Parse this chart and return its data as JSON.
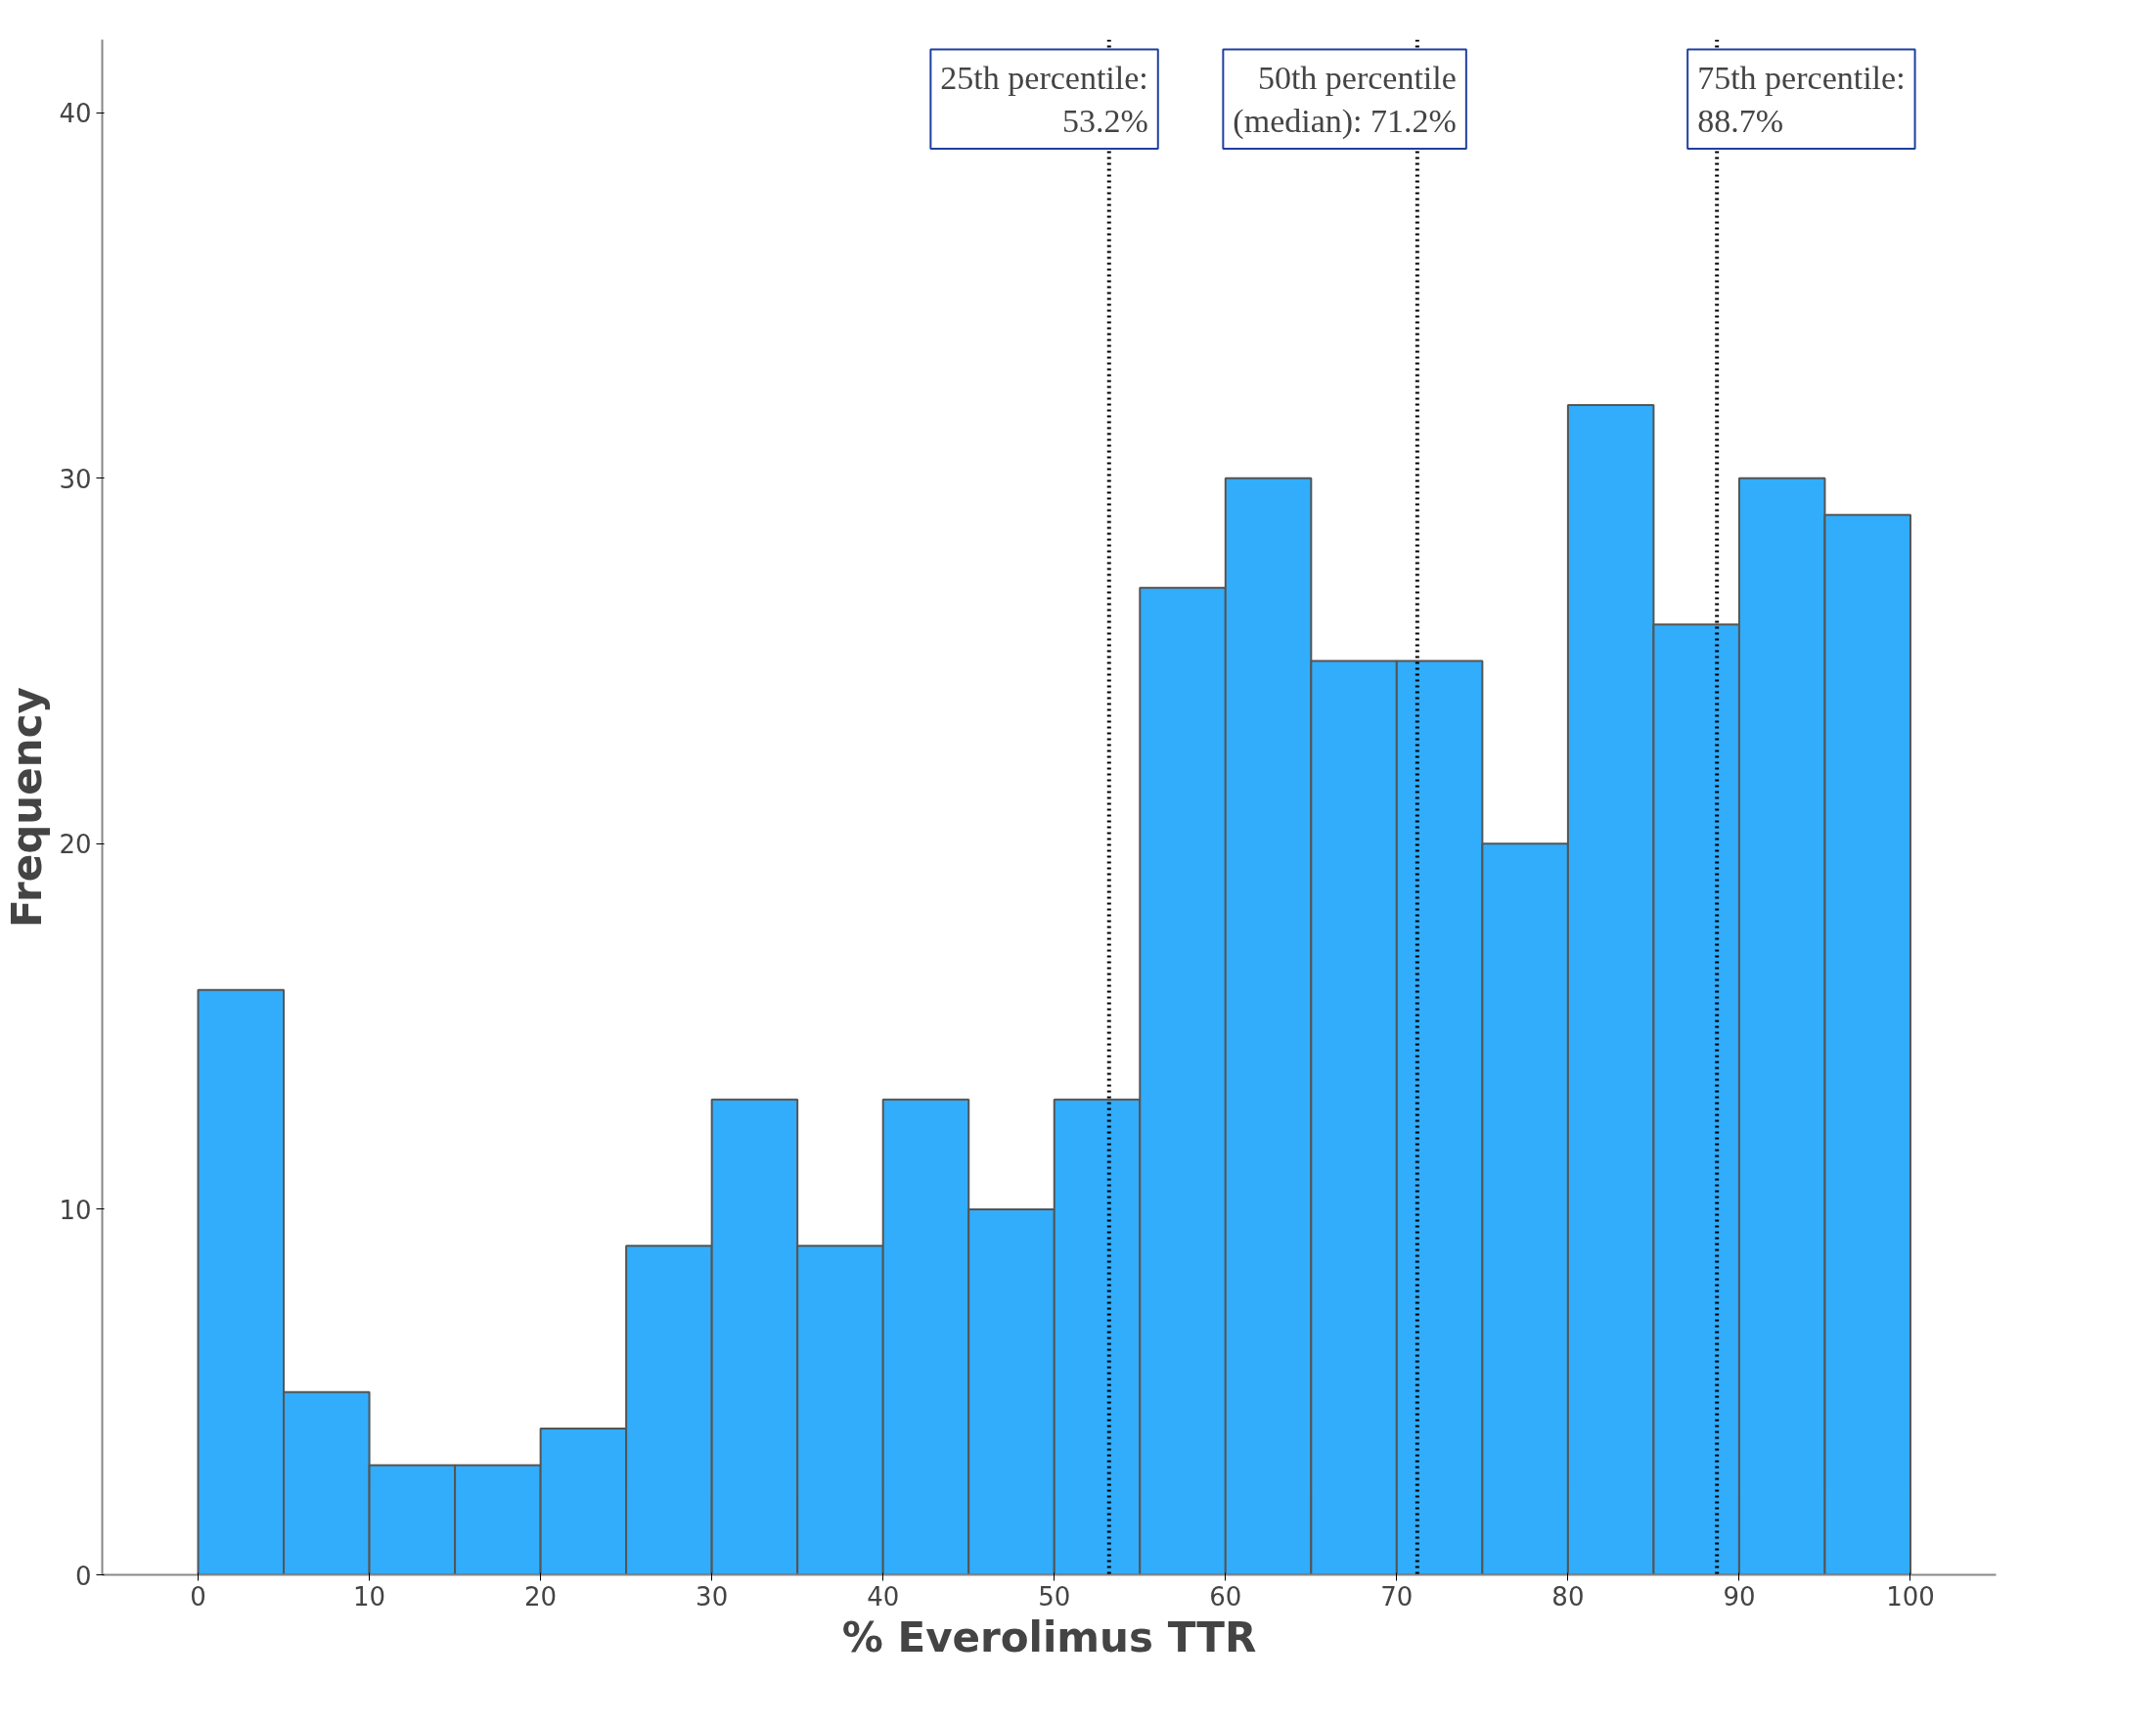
{
  "chart_data": {
    "type": "histogram",
    "xlabel": "% Everolimus TTR",
    "ylabel": "Frequency",
    "bins": [
      0,
      5,
      10,
      15,
      20,
      25,
      30,
      35,
      40,
      45,
      50,
      55,
      60,
      65,
      70,
      75,
      80,
      85,
      90,
      95,
      100
    ],
    "values": [
      16,
      5,
      3,
      3,
      4,
      9,
      13,
      9,
      13,
      10,
      13,
      27,
      30,
      25,
      25,
      20,
      32,
      26,
      30,
      29
    ],
    "color": "#31adfb",
    "xlim": [
      -5.6,
      105
    ],
    "xticks": [
      0,
      10,
      20,
      30,
      40,
      50,
      60,
      70,
      80,
      90,
      100
    ],
    "ylim": [
      0,
      42
    ],
    "yticks": [
      0,
      10,
      20,
      30,
      40
    ],
    "grid": false,
    "ref_lines": [
      {
        "axis": "x",
        "value": 53.2,
        "label": "25th percentile:\n53.2%",
        "line_style": "dotted",
        "color": "#000000"
      },
      {
        "axis": "x",
        "value": 71.2,
        "label": "50th percentile\n(median): 71.2%",
        "line_style": "dotted",
        "color": "#000000"
      },
      {
        "axis": "x",
        "value": 88.7,
        "label": "75th percentile:\n88.7%",
        "line_style": "dotted",
        "color": "#000000"
      }
    ]
  }
}
